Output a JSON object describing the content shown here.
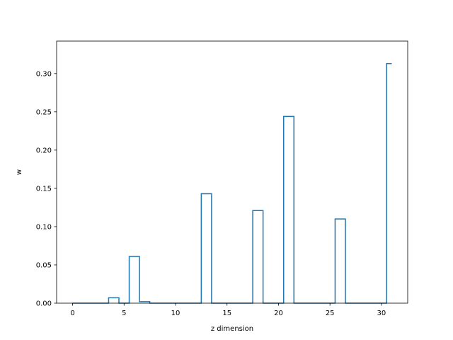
{
  "chart_data": {
    "type": "line",
    "drawstyle": "steps-mid",
    "title": "",
    "xlabel": "z dimension",
    "ylabel": "w",
    "xlim": [
      -1.55,
      32.55
    ],
    "ylim": [
      0,
      0.3424
    ],
    "x_ticks": [
      0,
      5,
      10,
      15,
      20,
      25,
      30
    ],
    "y_ticks": [
      0.0,
      0.05,
      0.1,
      0.15,
      0.2,
      0.25,
      0.3
    ],
    "y_tick_labels": [
      "0.00",
      "0.05",
      "0.10",
      "0.15",
      "0.20",
      "0.25",
      "0.30"
    ],
    "grid": false,
    "series": [
      {
        "color": "#1f77b4",
        "x": [
          0,
          1,
          2,
          3,
          4,
          5,
          6,
          7,
          8,
          9,
          10,
          11,
          12,
          13,
          14,
          15,
          16,
          17,
          18,
          19,
          20,
          21,
          22,
          23,
          24,
          25,
          26,
          27,
          28,
          29,
          30,
          31
        ],
        "values": [
          0,
          0,
          0,
          0,
          0.007,
          0,
          0.061,
          0.002,
          0,
          0,
          0,
          0,
          0,
          0.143,
          0,
          0,
          0,
          0,
          0.121,
          0,
          0,
          0.244,
          0,
          0,
          0,
          0,
          0.11,
          0,
          0,
          0,
          0,
          0.313
        ]
      }
    ]
  }
}
